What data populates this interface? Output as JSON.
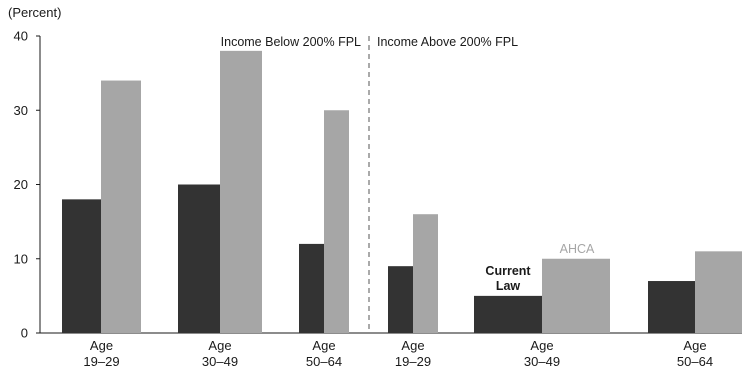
{
  "chart_data": {
    "type": "bar",
    "unit_label": "(Percent)",
    "ylim": [
      0,
      40
    ],
    "yticks": [
      0,
      10,
      20,
      30,
      40
    ],
    "grid": false,
    "groups": [
      {
        "label": "Income Below 200% FPL",
        "categories": [
          0,
          1,
          2
        ]
      },
      {
        "label": "Income Above 200% FPL",
        "categories": [
          3,
          4,
          5
        ]
      }
    ],
    "categories": [
      [
        "Age",
        "19–29"
      ],
      [
        "Age",
        "30–49"
      ],
      [
        "Age",
        "50–64"
      ],
      [
        "Age",
        "19–29"
      ],
      [
        "Age",
        "30–49"
      ],
      [
        "Age",
        "50–64"
      ]
    ],
    "series": [
      {
        "name": "Current Law",
        "color": "#333333",
        "values": [
          18,
          20,
          12,
          9,
          5,
          7
        ]
      },
      {
        "name": "AHCA",
        "color": "#a6a6a6",
        "values": [
          34,
          38,
          30,
          16,
          10,
          11
        ]
      }
    ],
    "series_labels": {
      "current_line1": "Current",
      "current_line2": "Law",
      "ahca": "AHCA"
    }
  }
}
